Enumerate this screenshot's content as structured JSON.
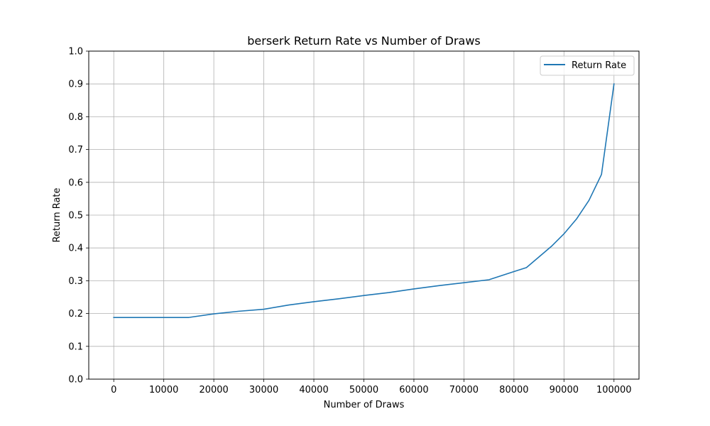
{
  "chart_data": {
    "type": "line",
    "title": "berserk Return Rate vs Number of Draws",
    "xlabel": "Number of Draws",
    "ylabel": "Return Rate",
    "xlim": [
      -5000,
      105000
    ],
    "ylim": [
      0.0,
      1.0
    ],
    "xticks": [
      0,
      10000,
      20000,
      30000,
      40000,
      50000,
      60000,
      70000,
      80000,
      90000,
      100000
    ],
    "yticks": [
      0.0,
      0.1,
      0.2,
      0.3,
      0.4,
      0.5,
      0.6,
      0.7,
      0.8,
      0.9,
      1.0
    ],
    "grid": true,
    "legend_position": "top-right",
    "series": [
      {
        "name": "Return Rate",
        "color": "#1f77b4",
        "x": [
          0,
          5000,
          10000,
          15000,
          20000,
          25000,
          30000,
          35000,
          40000,
          45000,
          50000,
          55000,
          60000,
          65000,
          70000,
          75000,
          80000,
          82500,
          87500,
          90000,
          92500,
          95000,
          97500,
          100000
        ],
        "y": [
          0.188,
          0.188,
          0.188,
          0.188,
          0.199,
          0.207,
          0.213,
          0.226,
          0.236,
          0.245,
          0.255,
          0.264,
          0.275,
          0.285,
          0.294,
          0.303,
          0.328,
          0.34,
          0.405,
          0.443,
          0.488,
          0.545,
          0.624,
          0.9
        ]
      }
    ]
  }
}
